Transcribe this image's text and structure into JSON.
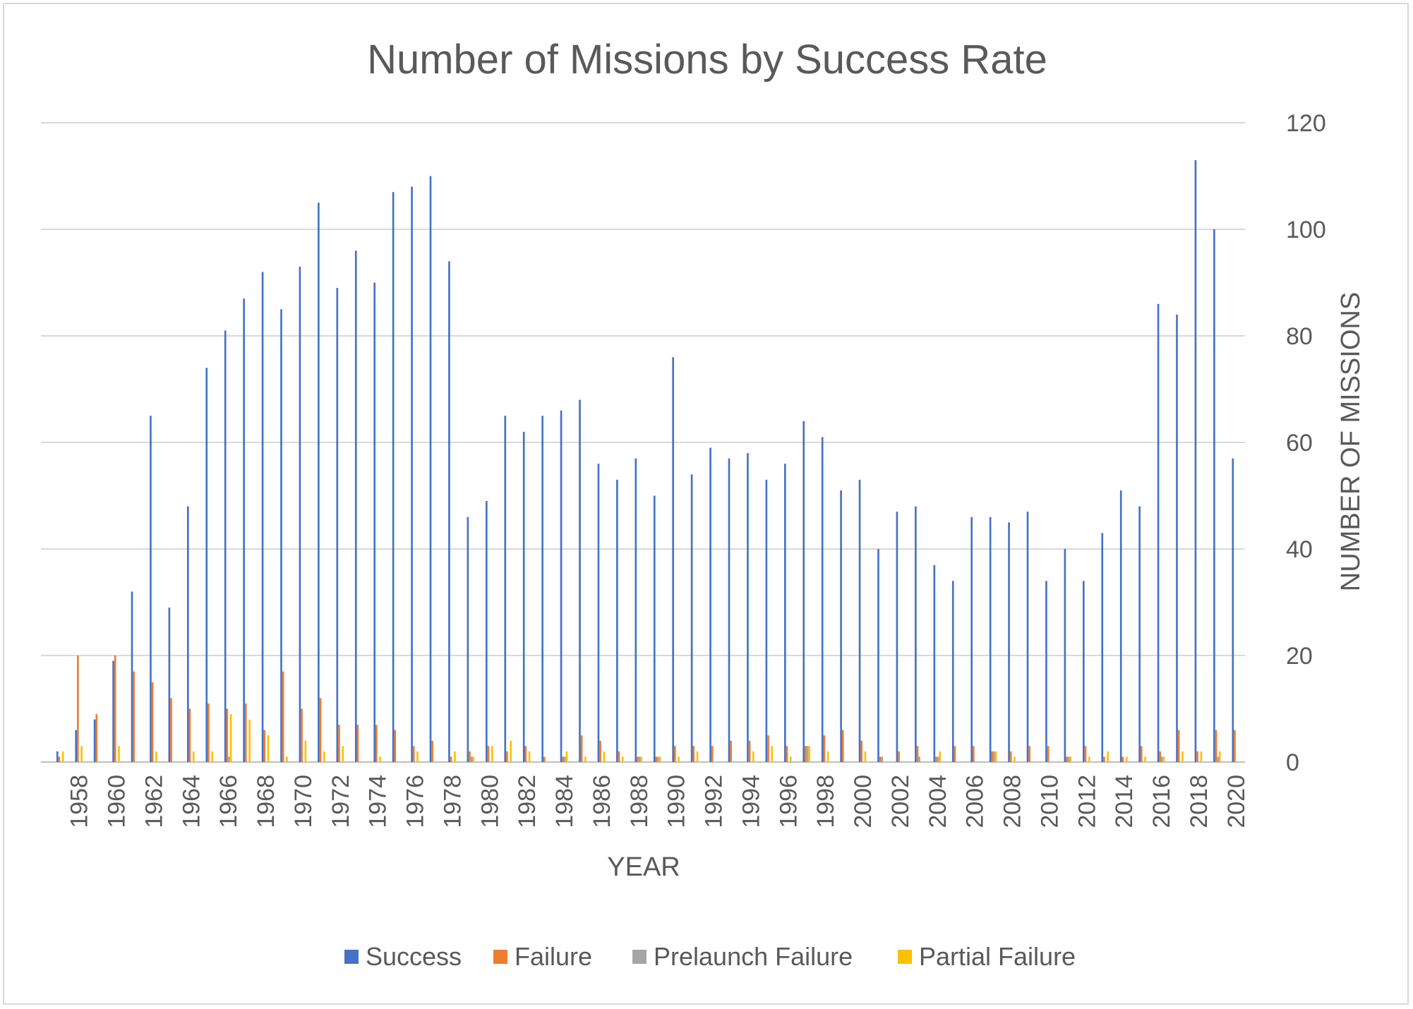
{
  "chart_data": {
    "type": "bar",
    "title": "Number of Missions by Success Rate",
    "xlabel": "YEAR",
    "ylabel": "NUMBER OF MISSIONS",
    "ylim": [
      0,
      120
    ],
    "yticks": [
      0,
      20,
      40,
      60,
      80,
      100,
      120
    ],
    "y_axis_position": "right",
    "grid": true,
    "legend_position": "bottom",
    "categories": [
      1957,
      1958,
      1959,
      1960,
      1961,
      1962,
      1963,
      1964,
      1965,
      1966,
      1967,
      1968,
      1969,
      1970,
      1971,
      1972,
      1973,
      1974,
      1975,
      1976,
      1977,
      1978,
      1979,
      1980,
      1981,
      1982,
      1983,
      1984,
      1985,
      1986,
      1987,
      1988,
      1989,
      1990,
      1991,
      1992,
      1993,
      1994,
      1995,
      1996,
      1997,
      1998,
      1999,
      2000,
      2001,
      2002,
      2003,
      2004,
      2005,
      2006,
      2007,
      2008,
      2009,
      2010,
      2011,
      2012,
      2013,
      2014,
      2015,
      2016,
      2017,
      2018,
      2019,
      2020
    ],
    "x_tick_labels": [
      "1958",
      "1960",
      "1962",
      "1964",
      "1966",
      "1968",
      "1970",
      "1972",
      "1974",
      "1976",
      "1978",
      "1980",
      "1982",
      "1984",
      "1986",
      "1988",
      "1990",
      "1992",
      "1994",
      "1996",
      "1998",
      "2000",
      "2002",
      "2004",
      "2006",
      "2008",
      "2010",
      "2012",
      "2014",
      "2016",
      "2018",
      "2020"
    ],
    "series": [
      {
        "name": "Success",
        "color": "#4472c4",
        "values": [
          2,
          6,
          8,
          19,
          32,
          65,
          29,
          48,
          74,
          81,
          87,
          92,
          85,
          93,
          105,
          89,
          96,
          90,
          107,
          108,
          110,
          94,
          46,
          49,
          65,
          62,
          65,
          66,
          68,
          56,
          53,
          57,
          50,
          76,
          54,
          59,
          57,
          58,
          53,
          56,
          64,
          61,
          51,
          53,
          40,
          47,
          48,
          37,
          34,
          46,
          46,
          45,
          47,
          34,
          40,
          34,
          43,
          51,
          48,
          86,
          84,
          113,
          100,
          57
        ]
      },
      {
        "name": "Failure",
        "color": "#ed7d31",
        "values": [
          1,
          20,
          9,
          20,
          17,
          15,
          12,
          10,
          11,
          10,
          11,
          6,
          17,
          10,
          12,
          7,
          7,
          7,
          6,
          3,
          4,
          1,
          2,
          3,
          2,
          3,
          1,
          1,
          5,
          4,
          2,
          1,
          1,
          3,
          3,
          3,
          4,
          4,
          5,
          3,
          3,
          5,
          6,
          4,
          1,
          2,
          3,
          1,
          3,
          3,
          2,
          2,
          3,
          3,
          1,
          3,
          1,
          1,
          3,
          2,
          6,
          2,
          6,
          6
        ]
      },
      {
        "name": "Prelaunch Failure",
        "color": "#a5a5a5",
        "values": [
          0,
          0,
          0,
          0,
          0,
          0,
          0,
          0,
          0,
          1,
          0,
          0,
          0,
          0,
          0,
          0,
          0,
          0,
          0,
          0,
          0,
          0,
          1,
          0,
          0,
          0,
          0,
          1,
          0,
          0,
          0,
          1,
          1,
          0,
          0,
          0,
          0,
          0,
          0,
          0,
          3,
          0,
          0,
          0,
          1,
          0,
          1,
          1,
          0,
          0,
          2,
          0,
          0,
          0,
          1,
          0,
          0,
          0,
          0,
          1,
          0,
          0,
          1,
          0
        ]
      },
      {
        "name": "Partial Failure",
        "color": "#ffc000",
        "values": [
          2,
          3,
          0,
          3,
          0,
          2,
          0,
          2,
          2,
          9,
          8,
          5,
          1,
          4,
          2,
          3,
          0,
          1,
          0,
          2,
          0,
          2,
          1,
          3,
          4,
          2,
          0,
          2,
          1,
          2,
          1,
          1,
          1,
          1,
          2,
          0,
          0,
          2,
          3,
          1,
          3,
          2,
          0,
          2,
          0,
          0,
          0,
          2,
          0,
          0,
          2,
          1,
          0,
          0,
          1,
          1,
          2,
          1,
          1,
          1,
          2,
          2,
          2,
          0
        ]
      }
    ]
  }
}
